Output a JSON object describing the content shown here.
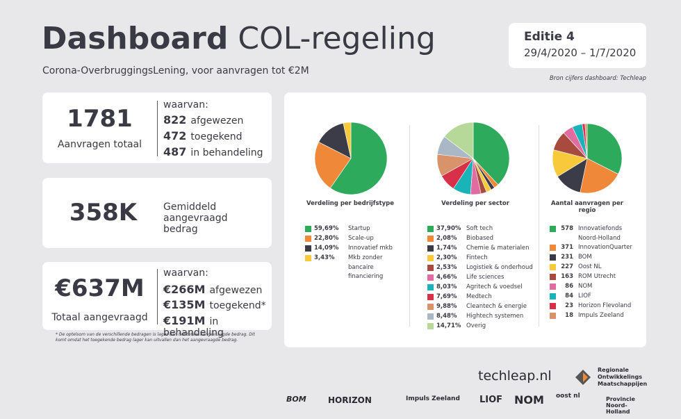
{
  "header": {
    "title_bold": "Dashboard",
    "title_rest": "COL-regeling",
    "subtitle": "Corona-OverbruggingsLening, voor aanvragen tot €2M",
    "edition": "Editie 4",
    "period": "29/4/2020 – 1/7/2020",
    "source": "Bron cijfers dashboard: Techleap"
  },
  "cards": [
    {
      "big": "1781",
      "caption": "Aanvragen totaal",
      "lead": "waarvan:",
      "rows": [
        {
          "value": "822",
          "label": "afgewezen"
        },
        {
          "value": "472",
          "label": "toegekend"
        },
        {
          "value": "487",
          "label": "in behandeling"
        }
      ]
    },
    {
      "big": "358K",
      "caption": "Gemiddeld aangevraagd bedrag"
    },
    {
      "big": "€637M",
      "caption": "Totaal aangevraagd",
      "lead": "waarvan:",
      "rows": [
        {
          "value": "€266M",
          "label": "afgewezen"
        },
        {
          "value": "€135M",
          "label": "toegekend*"
        },
        {
          "value": "€191M",
          "label": "in behandeling"
        }
      ]
    }
  ],
  "footnote": "* De optelsom van de verschillende bedragen is lager dan het totaal aangevraagde bedrag. Dit komt omdat het toegekende bedrag lager kan uitvallen dan het aangevraagde bedrag.",
  "chart_data": [
    {
      "type": "pie",
      "title": "Verdeling per bedrijfstype",
      "categories": [
        "Startup",
        "Scale-up",
        "Innovatief mkb",
        "Mkb zonder bancaire financiering"
      ],
      "values": [
        59.69,
        22.8,
        14.09,
        3.43
      ],
      "value_labels": [
        "59,69%",
        "22,80%",
        "14,09%",
        "3,43%"
      ],
      "colors": [
        "#2eaa5c",
        "#f0883a",
        "#3c3c48",
        "#f9c93c"
      ]
    },
    {
      "type": "pie",
      "title": "Verdeling per sector",
      "categories": [
        "Soft tech",
        "Biobased",
        "Chemie & materialen",
        "Fintech",
        "Logistiek & onderhoud",
        "Life sciences",
        "Agritech & voedsel",
        "Medtech",
        "Cleantech & energie",
        "Hightech systemen",
        "Overig"
      ],
      "values": [
        37.9,
        2.08,
        1.74,
        2.3,
        2.53,
        4.66,
        8.03,
        7.69,
        9.88,
        8.48,
        14.71
      ],
      "value_labels": [
        "37,90%",
        "2,08%",
        "1,74%",
        "2,30%",
        "2,53%",
        "4,66%",
        "8,03%",
        "7,69%",
        "9,88%",
        "8,48%",
        "14,71%"
      ],
      "colors": [
        "#2eaa5c",
        "#f0883a",
        "#3c3c48",
        "#f9c93c",
        "#a94a3e",
        "#e06ca0",
        "#1ab3b8",
        "#d9304a",
        "#d9936a",
        "#a9b8c4",
        "#b6d99a"
      ]
    },
    {
      "type": "pie",
      "title": "Aantal aanvragen per regio",
      "categories": [
        "Innovatiefonds Noord-Holland",
        "InnovationQuarter",
        "BOM",
        "Oost NL",
        "ROM Utrecht",
        "NOM",
        "LIOF",
        "Horizon Flevoland",
        "Impuls Zeeland"
      ],
      "values": [
        578,
        371,
        231,
        227,
        163,
        86,
        84,
        23,
        18
      ],
      "colors": [
        "#2eaa5c",
        "#f0883a",
        "#3c3c48",
        "#f9c93c",
        "#a94a3e",
        "#e06ca0",
        "#1ab3b8",
        "#d9304a",
        "#d9936a"
      ]
    }
  ],
  "logos": [
    "techleap.nl",
    "BOM",
    "HORIZON",
    "Impuls Zeeland",
    "LIOF",
    "NOM",
    "oost nl",
    "Regionale Ontwikkelings Maatschappijen",
    "Provincie Noord-Holland"
  ]
}
